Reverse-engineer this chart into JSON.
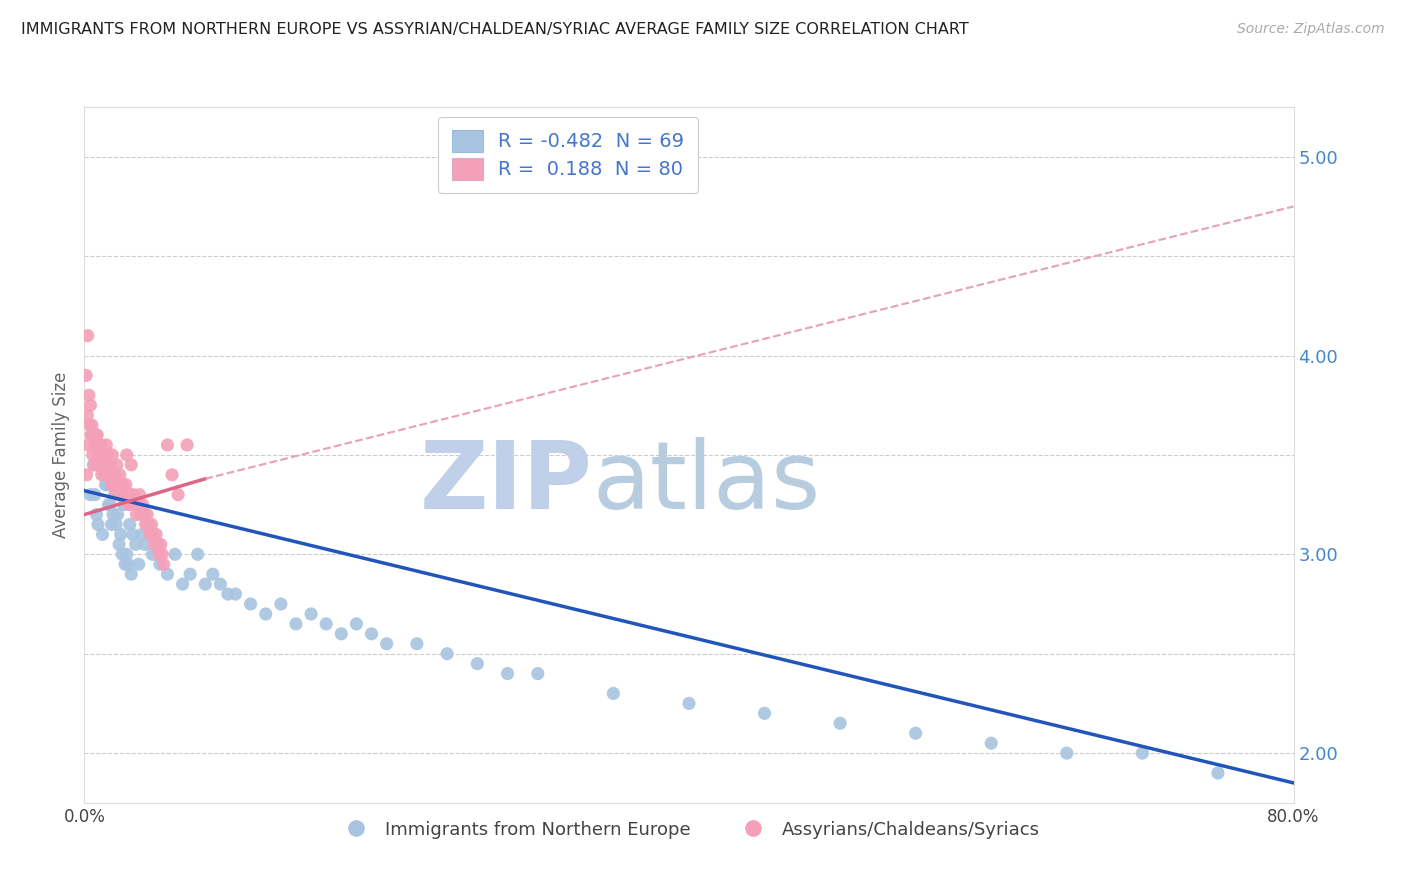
{
  "title": "IMMIGRANTS FROM NORTHERN EUROPE VS ASSYRIAN/CHALDEAN/SYRIAC AVERAGE FAMILY SIZE CORRELATION CHART",
  "source": "Source: ZipAtlas.com",
  "ylabel": "Average Family Size",
  "blue_R": "-0.482",
  "blue_N": 69,
  "pink_R": "0.188",
  "pink_N": 80,
  "blue_label": "Immigrants from Northern Europe",
  "pink_label": "Assyrians/Chaldeans/Syriacs",
  "blue_dot_color": "#a8c4e0",
  "blue_line_color": "#2255bb",
  "pink_dot_color": "#f4a0b8",
  "pink_line_color": "#dd6688",
  "pink_dashed_color": "#e8a0b8",
  "watermark_zip_color": "#c0d0e8",
  "watermark_atlas_color": "#b8cce0",
  "xmin": 0,
  "xmax": 80,
  "ymin": 1.75,
  "ymax": 5.25,
  "yticks": [
    2.0,
    3.0,
    4.0,
    5.0
  ],
  "blue_line_x0": 0,
  "blue_line_y0": 3.32,
  "blue_line_x1": 80,
  "blue_line_y1": 1.85,
  "pink_solid_x0": 0,
  "pink_solid_y0": 3.2,
  "pink_solid_x1": 8,
  "pink_solid_y1": 3.38,
  "pink_dashed_x0": 8,
  "pink_dashed_y0": 3.38,
  "pink_dashed_x1": 80,
  "pink_dashed_y1": 4.75,
  "blue_scatter_x": [
    0.4,
    0.6,
    0.8,
    1.0,
    1.2,
    1.4,
    1.6,
    1.8,
    2.0,
    2.2,
    2.4,
    2.6,
    2.8,
    3.0,
    3.2,
    3.4,
    3.6,
    3.8,
    4.0,
    4.5,
    5.0,
    5.5,
    6.0,
    6.5,
    7.0,
    7.5,
    8.0,
    8.5,
    9.0,
    9.5,
    10.0,
    11.0,
    12.0,
    13.0,
    14.0,
    15.0,
    16.0,
    17.0,
    18.0,
    19.0,
    20.0,
    22.0,
    24.0,
    26.0,
    28.0,
    30.0,
    35.0,
    40.0,
    45.0,
    50.0,
    55.0,
    60.0,
    65.0,
    70.0,
    75.0,
    1.1,
    1.3,
    1.5,
    1.7,
    1.9,
    2.1,
    2.3,
    2.5,
    2.7,
    2.9,
    3.1,
    0.5,
    0.7,
    0.9
  ],
  "blue_scatter_y": [
    3.3,
    3.45,
    3.2,
    3.5,
    3.1,
    3.35,
    3.25,
    3.15,
    3.3,
    3.2,
    3.1,
    3.25,
    3.0,
    3.15,
    3.1,
    3.05,
    2.95,
    3.1,
    3.05,
    3.0,
    2.95,
    2.9,
    3.0,
    2.85,
    2.9,
    3.0,
    2.85,
    2.9,
    2.85,
    2.8,
    2.8,
    2.75,
    2.7,
    2.75,
    2.65,
    2.7,
    2.65,
    2.6,
    2.65,
    2.6,
    2.55,
    2.55,
    2.5,
    2.45,
    2.4,
    2.4,
    2.3,
    2.25,
    2.2,
    2.15,
    2.1,
    2.05,
    2.0,
    2.0,
    1.9,
    3.55,
    3.4,
    3.35,
    3.25,
    3.2,
    3.15,
    3.05,
    3.0,
    2.95,
    2.95,
    2.9,
    3.6,
    3.3,
    3.15
  ],
  "pink_scatter_x": [
    0.15,
    0.25,
    0.35,
    0.45,
    0.55,
    0.65,
    0.75,
    0.85,
    0.95,
    1.05,
    1.15,
    1.25,
    1.35,
    1.45,
    1.55,
    1.65,
    1.75,
    1.85,
    1.95,
    2.05,
    2.15,
    2.25,
    2.35,
    2.45,
    2.55,
    2.65,
    2.75,
    2.85,
    2.95,
    3.05,
    3.15,
    3.25,
    3.35,
    3.45,
    3.55,
    3.65,
    3.75,
    3.85,
    3.95,
    4.05,
    4.15,
    4.25,
    4.35,
    4.45,
    4.55,
    4.65,
    4.75,
    4.85,
    4.95,
    5.05,
    5.15,
    5.25,
    5.5,
    5.8,
    6.2,
    6.8,
    0.2,
    0.3,
    0.4,
    0.5,
    0.6,
    0.7,
    0.8,
    0.9,
    1.0,
    1.1,
    1.2,
    1.3,
    1.4,
    1.5,
    1.6,
    1.7,
    1.8,
    1.9,
    2.0,
    2.1,
    0.12,
    0.22,
    2.8,
    3.1
  ],
  "pink_scatter_y": [
    3.4,
    3.55,
    3.65,
    3.6,
    3.5,
    3.45,
    3.55,
    3.6,
    3.45,
    3.5,
    3.4,
    3.5,
    3.45,
    3.55,
    3.5,
    3.4,
    3.45,
    3.5,
    3.35,
    3.4,
    3.45,
    3.35,
    3.4,
    3.3,
    3.35,
    3.3,
    3.35,
    3.3,
    3.25,
    3.3,
    3.25,
    3.3,
    3.25,
    3.2,
    3.25,
    3.3,
    3.2,
    3.25,
    3.2,
    3.15,
    3.2,
    3.15,
    3.1,
    3.15,
    3.1,
    3.05,
    3.1,
    3.05,
    3.0,
    3.05,
    3.0,
    2.95,
    3.55,
    3.4,
    3.3,
    3.55,
    3.7,
    3.8,
    3.75,
    3.65,
    3.6,
    3.55,
    3.6,
    3.5,
    3.55,
    3.5,
    3.45,
    3.5,
    3.45,
    3.4,
    3.45,
    3.4,
    3.35,
    3.4,
    3.35,
    3.3,
    3.9,
    4.1,
    3.5,
    3.45
  ],
  "grid_yticks": [
    2.0,
    2.5,
    3.0,
    3.5,
    4.0,
    4.5,
    5.0
  ]
}
